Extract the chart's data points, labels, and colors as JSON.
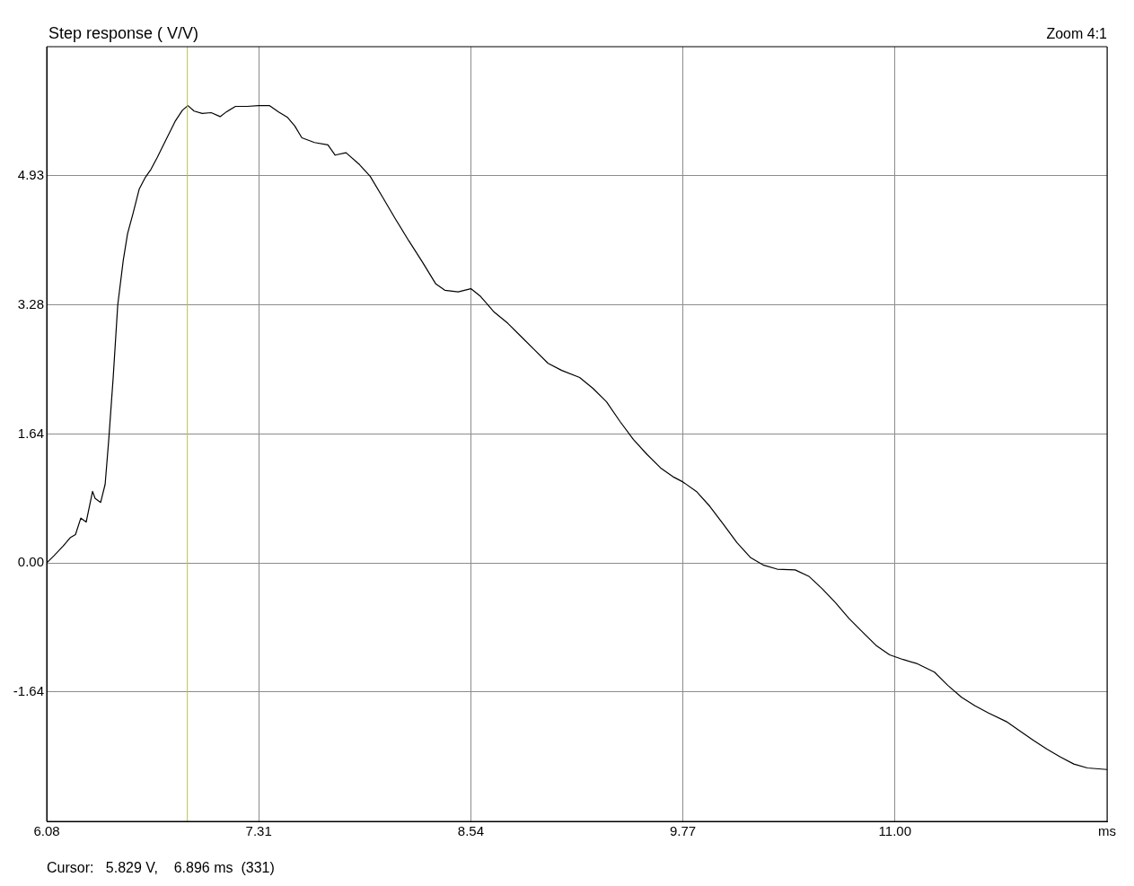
{
  "chart_data": {
    "type": "line",
    "title": "Step response ( V/V)",
    "annotations": [
      "Zoom 4:1",
      "Cursor:   5.829 V,    6.896 ms  (331)"
    ],
    "xlim": [
      6.08,
      12.23
    ],
    "ylim": [
      -3.29,
      6.57
    ],
    "xticks": [
      6.08,
      7.31,
      8.54,
      9.77,
      {
        "value": 11,
        "label": "11.00"
      },
      {
        "value": 12.23,
        "label": "ms"
      }
    ],
    "yticks": [
      -1.64,
      {
        "value": 0,
        "label": "0.00"
      },
      1.64,
      3.28,
      4.93
    ],
    "grid": true,
    "marker": "none",
    "line_style": "solid",
    "ref_lines": [
      {
        "axis": "x",
        "value": 6.896,
        "color": "#c8c800"
      }
    ],
    "series": [
      {
        "color": "#000000",
        "x": [
          6.08,
          6.122,
          6.174,
          6.216,
          6.247,
          6.278,
          6.309,
          6.346,
          6.361,
          6.393,
          6.419,
          6.44,
          6.466,
          6.492,
          6.524,
          6.549,
          6.58,
          6.617,
          6.653,
          6.685,
          6.721,
          6.773,
          6.825,
          6.867,
          6.899,
          6.935,
          6.982,
          7.034,
          7.086,
          7.122,
          7.175,
          7.242,
          7.31,
          7.373,
          7.425,
          7.477,
          7.519,
          7.56,
          7.633,
          7.711,
          7.753,
          7.816,
          7.894,
          7.956,
          8.024,
          8.102,
          8.18,
          8.259,
          8.337,
          8.389,
          8.467,
          8.54,
          8.597,
          8.676,
          8.754,
          8.832,
          8.91,
          8.988,
          9.067,
          9.171,
          9.249,
          9.327,
          9.405,
          9.483,
          9.562,
          9.64,
          9.718,
          9.77,
          9.848,
          9.926,
          10.005,
          10.083,
          10.161,
          10.239,
          10.317,
          10.421,
          10.5,
          10.578,
          10.656,
          10.734,
          10.812,
          10.89,
          10.969,
          11.047,
          11.125,
          11.229,
          11.307,
          11.386,
          11.464,
          11.542,
          11.646,
          11.724,
          11.803,
          11.881,
          11.959,
          12.037,
          12.116,
          12.23
        ],
        "values": [
          0,
          0.09,
          0.21,
          0.32,
          0.36,
          0.57,
          0.52,
          0.91,
          0.82,
          0.77,
          1,
          1.57,
          2.37,
          3.28,
          3.85,
          4.19,
          4.44,
          4.76,
          4.91,
          5.01,
          5.16,
          5.39,
          5.62,
          5.76,
          5.82,
          5.75,
          5.72,
          5.73,
          5.68,
          5.74,
          5.81,
          5.81,
          5.82,
          5.82,
          5.74,
          5.67,
          5.56,
          5.41,
          5.35,
          5.32,
          5.19,
          5.22,
          5.07,
          4.92,
          4.67,
          4.38,
          4.1,
          3.83,
          3.55,
          3.47,
          3.45,
          3.49,
          3.39,
          3.19,
          3.05,
          2.88,
          2.71,
          2.54,
          2.45,
          2.36,
          2.22,
          2.05,
          1.8,
          1.57,
          1.38,
          1.21,
          1.09,
          1.03,
          0.91,
          0.72,
          0.49,
          0.26,
          0.07,
          -0.03,
          -0.08,
          -0.09,
          -0.17,
          -0.33,
          -0.51,
          -0.71,
          -0.88,
          -1.05,
          -1.17,
          -1.23,
          -1.28,
          -1.39,
          -1.56,
          -1.71,
          -1.82,
          -1.91,
          -2.02,
          -2.14,
          -2.26,
          -2.37,
          -2.47,
          -2.56,
          -2.61,
          -2.63
        ]
      }
    ]
  }
}
